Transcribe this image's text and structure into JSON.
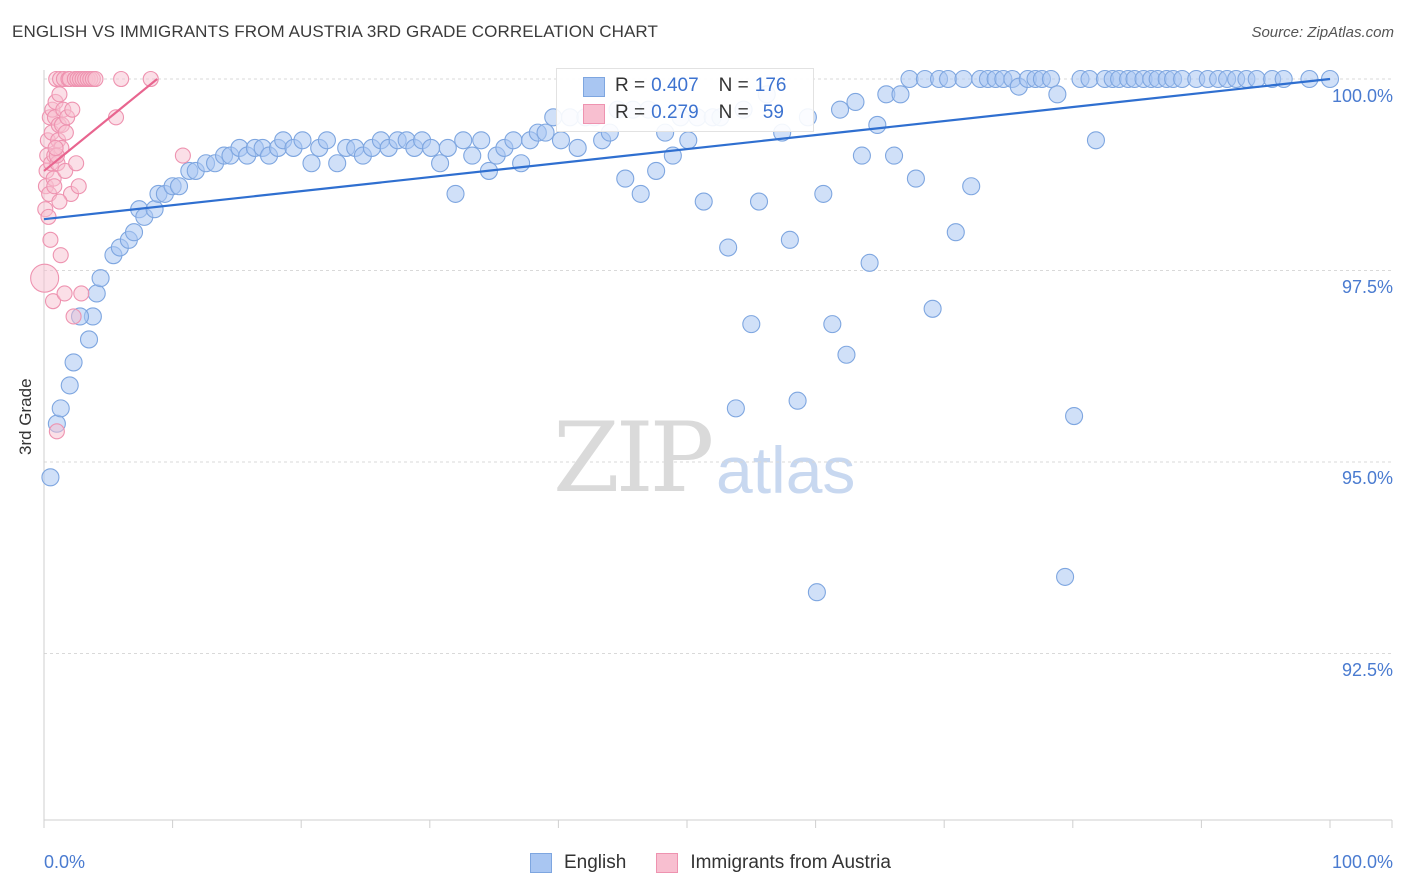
{
  "title": "ENGLISH VS IMMIGRANTS FROM AUSTRIA 3RD GRADE CORRELATION CHART",
  "source": "Source: ZipAtlas.com",
  "watermark": {
    "zip": "ZIP",
    "atlas": "atlas"
  },
  "legend_top": {
    "english": {
      "r_label": "R = ",
      "r_value": "0.407",
      "n_label": "N = ",
      "n_value": "176"
    },
    "austria": {
      "r_label": "R = ",
      "r_value": "0.279",
      "n_label": "N = ",
      "n_value": "59"
    }
  },
  "legend_bottom": {
    "english": "English",
    "austria": "Immigrants from Austria"
  },
  "colors": {
    "english_fill": "#a9c6f2",
    "english_stroke": "#7ea6e0",
    "english_line": "#2f6fd0",
    "austria_fill": "#f8bfd0",
    "austria_stroke": "#ee93b0",
    "austria_line": "#e8658f",
    "grid": "#d9d9d9",
    "tick_text": "#4a7bd0"
  },
  "chart_data": {
    "type": "scatter",
    "title": "ENGLISH VS IMMIGRANTS FROM AUSTRIA 3RD GRADE CORRELATION CHART",
    "xlabel": "",
    "ylabel": "3rd Grade",
    "xlim": [
      0,
      100
    ],
    "ylim": [
      90.0,
      100.4
    ],
    "y_ticks": [
      92.5,
      95.0,
      97.5,
      100.0
    ],
    "y_tick_labels": [
      "92.5%",
      "95.0%",
      "97.5%",
      "100.0%"
    ],
    "x_tick_labels": [
      "0.0%",
      "100.0%"
    ],
    "series": [
      {
        "name": "English",
        "R": 0.407,
        "N": 176,
        "trend": {
          "x": [
            0,
            100
          ],
          "y": [
            98.17,
            100.0
          ]
        },
        "points": [
          [
            0.5,
            94.8
          ],
          [
            1.0,
            95.5
          ],
          [
            1.3,
            95.7
          ],
          [
            2.0,
            96.0
          ],
          [
            2.3,
            96.3
          ],
          [
            3.5,
            96.6
          ],
          [
            3.8,
            96.9
          ],
          [
            2.8,
            96.9
          ],
          [
            4.1,
            97.2
          ],
          [
            4.4,
            97.4
          ],
          [
            5.4,
            97.7
          ],
          [
            5.9,
            97.8
          ],
          [
            6.6,
            97.9
          ],
          [
            7.0,
            98.0
          ],
          [
            7.4,
            98.3
          ],
          [
            7.8,
            98.2
          ],
          [
            8.6,
            98.3
          ],
          [
            8.9,
            98.5
          ],
          [
            9.4,
            98.5
          ],
          [
            10.0,
            98.6
          ],
          [
            10.5,
            98.6
          ],
          [
            11.3,
            98.8
          ],
          [
            11.8,
            98.8
          ],
          [
            12.6,
            98.9
          ],
          [
            13.3,
            98.9
          ],
          [
            14.0,
            99.0
          ],
          [
            14.5,
            99.0
          ],
          [
            15.2,
            99.1
          ],
          [
            15.8,
            99.0
          ],
          [
            16.4,
            99.1
          ],
          [
            17.0,
            99.1
          ],
          [
            17.5,
            99.0
          ],
          [
            18.2,
            99.1
          ],
          [
            18.6,
            99.2
          ],
          [
            19.4,
            99.1
          ],
          [
            20.1,
            99.2
          ],
          [
            20.8,
            98.9
          ],
          [
            21.4,
            99.1
          ],
          [
            22.0,
            99.2
          ],
          [
            22.8,
            98.9
          ],
          [
            23.5,
            99.1
          ],
          [
            24.2,
            99.1
          ],
          [
            24.8,
            99.0
          ],
          [
            25.5,
            99.1
          ],
          [
            26.2,
            99.2
          ],
          [
            26.8,
            99.1
          ],
          [
            27.5,
            99.2
          ],
          [
            28.2,
            99.2
          ],
          [
            28.8,
            99.1
          ],
          [
            29.4,
            99.2
          ],
          [
            30.1,
            99.1
          ],
          [
            30.8,
            98.9
          ],
          [
            31.4,
            99.1
          ],
          [
            32.0,
            98.5
          ],
          [
            32.6,
            99.2
          ],
          [
            33.3,
            99.0
          ],
          [
            34.0,
            99.2
          ],
          [
            34.6,
            98.8
          ],
          [
            35.2,
            99.0
          ],
          [
            35.8,
            99.1
          ],
          [
            36.5,
            99.2
          ],
          [
            37.1,
            98.9
          ],
          [
            37.8,
            99.2
          ],
          [
            38.4,
            99.3
          ],
          [
            39.0,
            99.3
          ],
          [
            39.6,
            99.5
          ],
          [
            40.2,
            99.2
          ],
          [
            40.9,
            99.5
          ],
          [
            41.5,
            99.1
          ],
          [
            42.1,
            99.5
          ],
          [
            42.8,
            99.5
          ],
          [
            43.4,
            99.2
          ],
          [
            44.0,
            99.3
          ],
          [
            44.6,
            99.6
          ],
          [
            45.2,
            98.7
          ],
          [
            45.8,
            99.6
          ],
          [
            46.4,
            98.5
          ],
          [
            47.0,
            99.6
          ],
          [
            47.6,
            98.8
          ],
          [
            48.3,
            99.3
          ],
          [
            48.9,
            99.0
          ],
          [
            49.5,
            99.5
          ],
          [
            50.1,
            99.2
          ],
          [
            50.8,
            99.5
          ],
          [
            51.3,
            98.4
          ],
          [
            52.0,
            99.5
          ],
          [
            52.6,
            99.5
          ],
          [
            53.2,
            97.8
          ],
          [
            53.8,
            95.7
          ],
          [
            54.4,
            99.6
          ],
          [
            55.0,
            96.8
          ],
          [
            55.6,
            98.4
          ],
          [
            56.2,
            99.8
          ],
          [
            57.4,
            99.3
          ],
          [
            58.0,
            97.9
          ],
          [
            58.6,
            95.8
          ],
          [
            59.4,
            99.5
          ],
          [
            60.1,
            93.3
          ],
          [
            60.6,
            98.5
          ],
          [
            61.3,
            96.8
          ],
          [
            61.9,
            99.6
          ],
          [
            62.4,
            96.4
          ],
          [
            63.1,
            99.7
          ],
          [
            63.6,
            99.0
          ],
          [
            64.2,
            97.6
          ],
          [
            64.8,
            99.4
          ],
          [
            65.5,
            99.8
          ],
          [
            66.1,
            99.0
          ],
          [
            66.6,
            99.8
          ],
          [
            67.3,
            100.0
          ],
          [
            67.8,
            98.7
          ],
          [
            68.5,
            100.0
          ],
          [
            69.1,
            97.0
          ],
          [
            69.6,
            100.0
          ],
          [
            70.3,
            100.0
          ],
          [
            70.9,
            98.0
          ],
          [
            71.5,
            100.0
          ],
          [
            72.1,
            98.6
          ],
          [
            72.8,
            100.0
          ],
          [
            73.4,
            100.0
          ],
          [
            74.0,
            100.0
          ],
          [
            74.6,
            100.0
          ],
          [
            75.3,
            100.0
          ],
          [
            75.8,
            99.9
          ],
          [
            76.5,
            100.0
          ],
          [
            77.1,
            100.0
          ],
          [
            77.6,
            100.0
          ],
          [
            78.3,
            100.0
          ],
          [
            78.8,
            99.8
          ],
          [
            79.4,
            93.5
          ],
          [
            80.1,
            95.6
          ],
          [
            80.6,
            100.0
          ],
          [
            81.3,
            100.0
          ],
          [
            81.8,
            99.2
          ],
          [
            82.5,
            100.0
          ],
          [
            83.1,
            100.0
          ],
          [
            83.6,
            100.0
          ],
          [
            84.3,
            100.0
          ],
          [
            84.8,
            100.0
          ],
          [
            85.5,
            100.0
          ],
          [
            86.1,
            100.0
          ],
          [
            86.6,
            100.0
          ],
          [
            87.3,
            100.0
          ],
          [
            87.8,
            100.0
          ],
          [
            88.5,
            100.0
          ],
          [
            89.6,
            100.0
          ],
          [
            90.5,
            100.0
          ],
          [
            91.3,
            100.0
          ],
          [
            92.0,
            100.0
          ],
          [
            92.7,
            100.0
          ],
          [
            93.5,
            100.0
          ],
          [
            94.3,
            100.0
          ],
          [
            95.5,
            100.0
          ],
          [
            96.4,
            100.0
          ],
          [
            98.4,
            100.0
          ],
          [
            100.0,
            100.0
          ]
        ]
      },
      {
        "name": "Immigrants from Austria",
        "R": 0.279,
        "N": 59,
        "trend": {
          "x": [
            0,
            8.8
          ],
          "y": [
            98.8,
            100.0
          ]
        },
        "points": [
          [
            0.05,
            97.4
          ],
          [
            0.1,
            98.3
          ],
          [
            0.15,
            98.6
          ],
          [
            0.2,
            98.8
          ],
          [
            0.25,
            99.0
          ],
          [
            0.3,
            99.2
          ],
          [
            0.35,
            98.2
          ],
          [
            0.4,
            98.5
          ],
          [
            0.45,
            99.5
          ],
          [
            0.5,
            97.9
          ],
          [
            0.55,
            98.9
          ],
          [
            0.6,
            99.3
          ],
          [
            0.65,
            99.6
          ],
          [
            0.7,
            97.1
          ],
          [
            0.75,
            98.7
          ],
          [
            0.8,
            99.0
          ],
          [
            0.85,
            99.5
          ],
          [
            0.9,
            99.7
          ],
          [
            0.95,
            100.0
          ],
          [
            1.0,
            95.4
          ],
          [
            1.05,
            98.9
          ],
          [
            1.1,
            99.2
          ],
          [
            1.15,
            99.4
          ],
          [
            1.2,
            99.8
          ],
          [
            1.25,
            100.0
          ],
          [
            1.3,
            97.7
          ],
          [
            1.35,
            99.1
          ],
          [
            1.4,
            99.4
          ],
          [
            1.5,
            99.6
          ],
          [
            1.55,
            100.0
          ],
          [
            1.6,
            97.2
          ],
          [
            1.65,
            98.8
          ],
          [
            1.7,
            99.3
          ],
          [
            1.8,
            99.5
          ],
          [
            1.9,
            100.0
          ],
          [
            2.0,
            100.0
          ],
          [
            2.1,
            98.5
          ],
          [
            2.2,
            99.6
          ],
          [
            2.3,
            96.9
          ],
          [
            2.4,
            100.0
          ],
          [
            2.5,
            98.9
          ],
          [
            2.6,
            100.0
          ],
          [
            2.7,
            98.6
          ],
          [
            2.8,
            100.0
          ],
          [
            2.9,
            97.2
          ],
          [
            3.0,
            100.0
          ],
          [
            3.2,
            100.0
          ],
          [
            3.4,
            100.0
          ],
          [
            3.6,
            100.0
          ],
          [
            3.8,
            100.0
          ],
          [
            4.0,
            100.0
          ],
          [
            1.0,
            99.0
          ],
          [
            1.2,
            98.4
          ],
          [
            0.9,
            99.1
          ],
          [
            5.6,
            99.5
          ],
          [
            6.0,
            100.0
          ],
          [
            8.3,
            100.0
          ],
          [
            10.8,
            99.0
          ],
          [
            0.8,
            98.6
          ]
        ]
      }
    ]
  }
}
